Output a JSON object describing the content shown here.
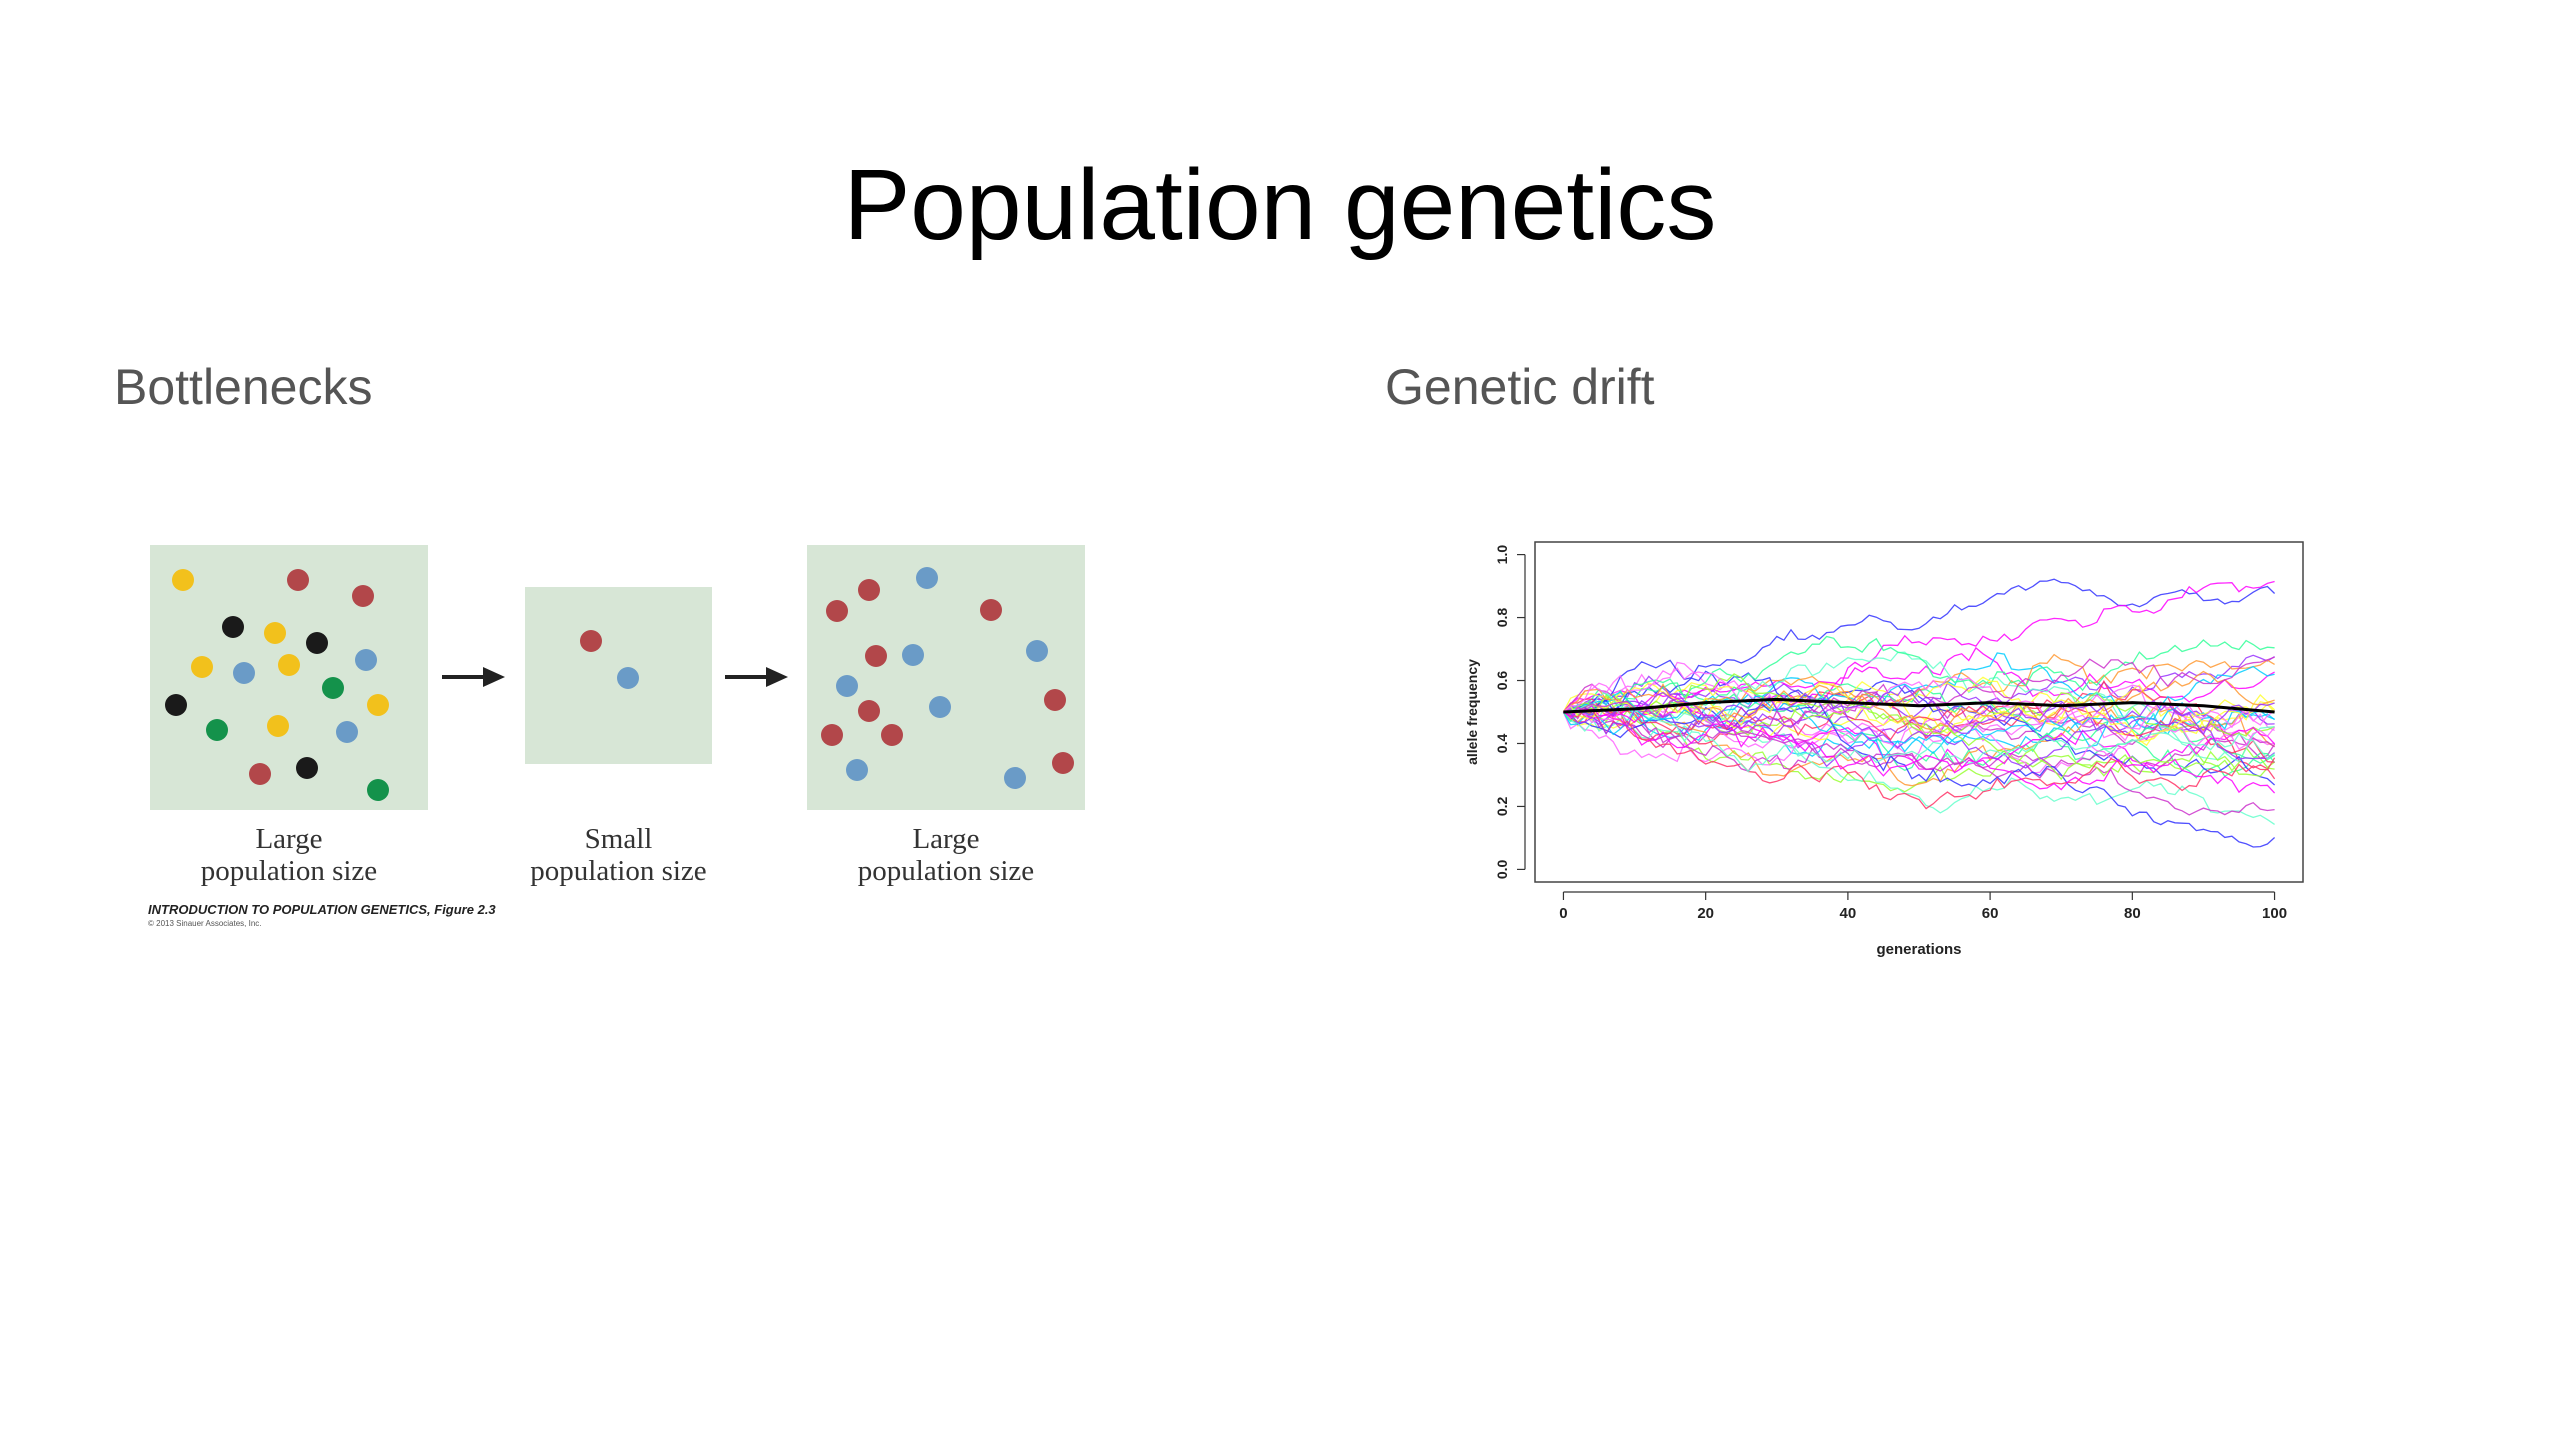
{
  "slide": {
    "title": "Population genetics"
  },
  "left": {
    "heading": "Bottlenecks",
    "figure": {
      "colors": {
        "box": "#d7e6d6",
        "yellow": "#f2c11c",
        "red": "#b2474a",
        "black": "#1a1a1a",
        "blue": "#6a9bc7",
        "green": "#14924b"
      },
      "panels": [
        {
          "label_line1": "Large",
          "label_line2": "population size"
        },
        {
          "label_line1": "Small",
          "label_line2": "population size"
        },
        {
          "label_line1": "Large",
          "label_line2": "population size"
        }
      ],
      "credit": "INTRODUCTION TO POPULATION GENETICS, Figure 2.3",
      "copyright": "© 2013 Sinauer Associates, Inc."
    }
  },
  "right": {
    "heading": "Genetic drift",
    "chart_data": {
      "type": "line",
      "xlabel": "generations",
      "ylabel": "allele frequency",
      "xlim": [
        0,
        100
      ],
      "ylim": [
        0,
        1
      ],
      "xticks": [
        0,
        20,
        40,
        60,
        80,
        100
      ],
      "yticks": [
        0.0,
        0.2,
        0.4,
        0.6,
        0.8,
        1.0
      ],
      "start_frequency": 0.5,
      "generations": 100,
      "num_replicates": 40,
      "mean_line": {
        "x": [
          0,
          10,
          20,
          30,
          40,
          50,
          60,
          70,
          80,
          90,
          100
        ],
        "y": [
          0.5,
          0.51,
          0.53,
          0.54,
          0.53,
          0.52,
          0.53,
          0.52,
          0.53,
          0.52,
          0.5
        ]
      },
      "replicate_colors": [
        "#ff00ff",
        "#ff66ff",
        "#cc33cc",
        "#9933ff",
        "#3333ff",
        "#00ccff",
        "#33ff99",
        "#99ff33",
        "#ffff33",
        "#ff9933",
        "#ff3366",
        "#66ffcc"
      ],
      "mean_color": "#000000"
    }
  }
}
